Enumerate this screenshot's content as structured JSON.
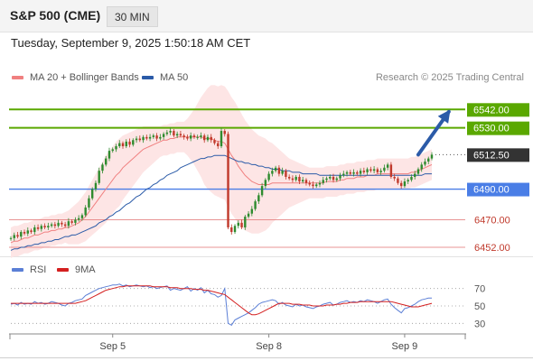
{
  "header": {
    "symbol": "S&P 500 (CME)",
    "interval": "30 MIN",
    "timestamp": "Tuesday, September 9, 2025 1:50:18 AM CET"
  },
  "legend": {
    "ma20_label": "MA 20 + Bollinger Bands",
    "ma50_label": "MA 50",
    "rsi_label": "RSI",
    "rsi_ma_label": "9MA",
    "credit": "Research © 2025 Trading Central"
  },
  "colors": {
    "up": "#2e8b2e",
    "down": "#c0392b",
    "ma20": "#f08080",
    "ma50": "#2b5ba8",
    "bollinger_fill": "#fde2e2",
    "resistance": "#5aa800",
    "current": "#333333",
    "support_blue": "#4a7ee6",
    "support_red": "#e07070",
    "arrow": "#2b5ba8",
    "rsi": "#5b7fd6",
    "rsi_ma": "#d42020"
  },
  "chart_data": [
    {
      "type": "candlestick",
      "title": "S&P 500 (CME) 30 MIN",
      "x_ticks": [
        {
          "label": "Sep 5",
          "index": 30
        },
        {
          "label": "Sep 8",
          "index": 76
        },
        {
          "label": "Sep 9",
          "index": 116
        }
      ],
      "ylim": [
        6447.3,
        6557.5
      ],
      "grid": false,
      "levels": [
        {
          "value": 6542.0,
          "label": "6542.00",
          "kind": "resistance",
          "style": "box-green"
        },
        {
          "value": 6530.0,
          "label": "6530.00",
          "kind": "resistance",
          "style": "box-green"
        },
        {
          "value": 6512.5,
          "label": "6512.50",
          "kind": "current",
          "style": "box-dark"
        },
        {
          "value": 6490.0,
          "label": "6490.00",
          "kind": "pivot",
          "style": "box-blue"
        },
        {
          "value": 6470.0,
          "label": "6470.00",
          "kind": "support",
          "style": "text-red"
        },
        {
          "value": 6452.0,
          "label": "6452.00",
          "kind": "support",
          "style": "text-red"
        }
      ],
      "arrow": {
        "from_index": 120,
        "from_value": 6512.5,
        "to_index": 129,
        "to_value": 6540.5
      },
      "closes": [
        6458,
        6460,
        6459,
        6462,
        6461,
        6463,
        6462,
        6465,
        6464,
        6466,
        6465,
        6466,
        6467,
        6466,
        6468,
        6467,
        6466,
        6469,
        6468,
        6470,
        6471,
        6473,
        6478,
        6484,
        6490,
        6494,
        6502,
        6506,
        6510,
        6515,
        6516,
        6518,
        6520,
        6518,
        6521,
        6519,
        6522,
        6523,
        6522,
        6524,
        6523,
        6524,
        6525,
        6523,
        6524,
        6526,
        6527,
        6528,
        6525,
        6526,
        6525,
        6524,
        6523,
        6525,
        6524,
        6524,
        6525,
        6522,
        6524,
        6522,
        6520,
        6518,
        6528,
        6526,
        6465,
        6462,
        6466,
        6468,
        6465,
        6472,
        6474,
        6477,
        6482,
        6486,
        6492,
        6496,
        6500,
        6502,
        6504,
        6500,
        6502,
        6498,
        6497,
        6496,
        6498,
        6495,
        6496,
        6494,
        6493,
        6492,
        6493,
        6494,
        6496,
        6497,
        6498,
        6496,
        6497,
        6499,
        6500,
        6501,
        6500,
        6501,
        6500,
        6502,
        6501,
        6503,
        6502,
        6503,
        6501,
        6502,
        6504,
        6506,
        6498,
        6497,
        6494,
        6492,
        6495,
        6496,
        6498,
        6500,
        6503,
        6506,
        6508,
        6510,
        6512.5
      ],
      "ma20": [
        6455,
        6456,
        6456,
        6457,
        6458,
        6458,
        6459,
        6460,
        6460,
        6461,
        6462,
        6462,
        6463,
        6463,
        6464,
        6464,
        6465,
        6465,
        6466,
        6467,
        6468,
        6470,
        6472,
        6475,
        6478,
        6481,
        6484,
        6487,
        6490,
        6493,
        6496,
        6499,
        6501,
        6504,
        6506,
        6508,
        6510,
        6512,
        6514,
        6516,
        6517,
        6518,
        6519,
        6520,
        6521,
        6522,
        6522,
        6523,
        6523,
        6524,
        6524,
        6524,
        6524,
        6524,
        6524,
        6524,
        6524,
        6523,
        6523,
        6523,
        6522,
        6521,
        6521,
        6520,
        6516,
        6512,
        6509,
        6505,
        6502,
        6499,
        6497,
        6495,
        6494,
        6493,
        6493,
        6493,
        6493,
        6494,
        6494,
        6494,
        6494,
        6494,
        6494,
        6494,
        6494,
        6494,
        6494,
        6494,
        6494,
        6494,
        6494,
        6494,
        6494,
        6495,
        6495,
        6495,
        6495,
        6496,
        6496,
        6497,
        6497,
        6497,
        6498,
        6498,
        6498,
        6499,
        6499,
        6499,
        6500,
        6500,
        6500,
        6500,
        6500,
        6500,
        6500,
        6500,
        6500,
        6500,
        6501,
        6501,
        6502,
        6503,
        6504,
        6505,
        6506
      ],
      "ma50": [
        6450,
        6451,
        6451,
        6452,
        6452,
        6453,
        6453,
        6454,
        6454,
        6455,
        6455,
        6456,
        6456,
        6457,
        6457,
        6458,
        6459,
        6459,
        6460,
        6460,
        6461,
        6462,
        6463,
        6464,
        6465,
        6466,
        6468,
        6469,
        6470,
        6472,
        6473,
        6475,
        6476,
        6478,
        6480,
        6481,
        6483,
        6485,
        6486,
        6488,
        6490,
        6491,
        6493,
        6494,
        6496,
        6497,
        6499,
        6500,
        6501,
        6502,
        6504,
        6505,
        6506,
        6507,
        6508,
        6509,
        6510,
        6510,
        6511,
        6511,
        6512,
        6512,
        6512,
        6512,
        6511,
        6510,
        6509,
        6508,
        6508,
        6507,
        6507,
        6506,
        6506,
        6505,
        6505,
        6504,
        6504,
        6503,
        6503,
        6503,
        6502,
        6502,
        6502,
        6501,
        6501,
        6501,
        6500,
        6500,
        6500,
        6500,
        6500,
        6499,
        6499,
        6499,
        6499,
        6499,
        6499,
        6499,
        6499,
        6499,
        6499,
        6499,
        6499,
        6499,
        6499,
        6499,
        6499,
        6499,
        6499,
        6499,
        6499,
        6499,
        6499,
        6499,
        6499,
        6499,
        6499,
        6499,
        6499,
        6499,
        6499,
        6499,
        6500,
        6500,
        6500
      ],
      "band_width": [
        10,
        10,
        10,
        10,
        10,
        10,
        10,
        10,
        10,
        10,
        10,
        10,
        10,
        10,
        10,
        10,
        10,
        11,
        12,
        13,
        14,
        15,
        16,
        17,
        18,
        19,
        20,
        21,
        22,
        22,
        22,
        22,
        22,
        21,
        20,
        19,
        18,
        17,
        16,
        15,
        14,
        13,
        12,
        11,
        10,
        10,
        10,
        10,
        10,
        10,
        10,
        10,
        12,
        15,
        18,
        22,
        26,
        30,
        33,
        35,
        36,
        36,
        37,
        37,
        38,
        38,
        38,
        38,
        37,
        36,
        35,
        34,
        33,
        32,
        31,
        30,
        28,
        26,
        24,
        22,
        20,
        18,
        16,
        15,
        14,
        13,
        12,
        11,
        10,
        10,
        10,
        10,
        10,
        10,
        10,
        10,
        10,
        10,
        10,
        10,
        10,
        10,
        10,
        10,
        10,
        10,
        10,
        10,
        10,
        10,
        10,
        10,
        10,
        10,
        10,
        10,
        10,
        10,
        10,
        10,
        10,
        10,
        10,
        10,
        10
      ]
    },
    {
      "type": "line",
      "title": "RSI",
      "ylim": [
        20,
        80
      ],
      "y_ticks": [
        30,
        50,
        70
      ],
      "grid": "dotted at 30, 50, 70",
      "series": [
        {
          "name": "RSI",
          "values": [
            52,
            53,
            51,
            54,
            52,
            53,
            52,
            55,
            53,
            54,
            52,
            53,
            55,
            54,
            53,
            51,
            50,
            53,
            54,
            56,
            57,
            58,
            62,
            64,
            66,
            68,
            70,
            71,
            72,
            73,
            74,
            74,
            75,
            73,
            74,
            72,
            73,
            74,
            73,
            72,
            73,
            71,
            72,
            70,
            71,
            72,
            73,
            68,
            70,
            69,
            68,
            70,
            72,
            67,
            70,
            68,
            71,
            65,
            68,
            64,
            63,
            60,
            62,
            70,
            30,
            28,
            34,
            36,
            38,
            40,
            42,
            45,
            48,
            52,
            54,
            55,
            56,
            57,
            56,
            52,
            54,
            51,
            50,
            49,
            52,
            50,
            51,
            49,
            48,
            47,
            49,
            50,
            52,
            53,
            54,
            51,
            52,
            54,
            55,
            56,
            54,
            55,
            54,
            56,
            55,
            57,
            56,
            55,
            53,
            55,
            57,
            58,
            52,
            48,
            45,
            42,
            47,
            48,
            50,
            52,
            55,
            57,
            58,
            59,
            59
          ]
        },
        {
          "name": "9MA",
          "values": [
            53,
            53,
            53,
            53,
            53,
            53,
            53,
            53,
            53,
            53,
            53,
            53,
            53,
            53,
            53,
            53,
            53,
            53,
            53,
            53,
            54,
            55,
            56,
            58,
            60,
            62,
            64,
            66,
            68,
            69,
            70,
            71,
            72,
            72,
            73,
            73,
            73,
            73,
            73,
            73,
            73,
            73,
            72,
            72,
            72,
            72,
            72,
            71,
            71,
            71,
            70,
            70,
            70,
            70,
            69,
            69,
            69,
            68,
            68,
            67,
            66,
            65,
            64,
            63,
            60,
            57,
            54,
            51,
            48,
            45,
            42,
            40,
            40,
            41,
            43,
            45,
            47,
            49,
            51,
            53,
            53,
            53,
            53,
            52,
            52,
            52,
            51,
            51,
            51,
            50,
            50,
            50,
            50,
            51,
            51,
            51,
            52,
            52,
            53,
            53,
            54,
            54,
            54,
            55,
            55,
            55,
            55,
            55,
            55,
            55,
            55,
            55,
            55,
            54,
            53,
            52,
            51,
            50,
            49,
            49,
            49,
            50,
            51,
            52,
            53
          ]
        }
      ]
    }
  ]
}
